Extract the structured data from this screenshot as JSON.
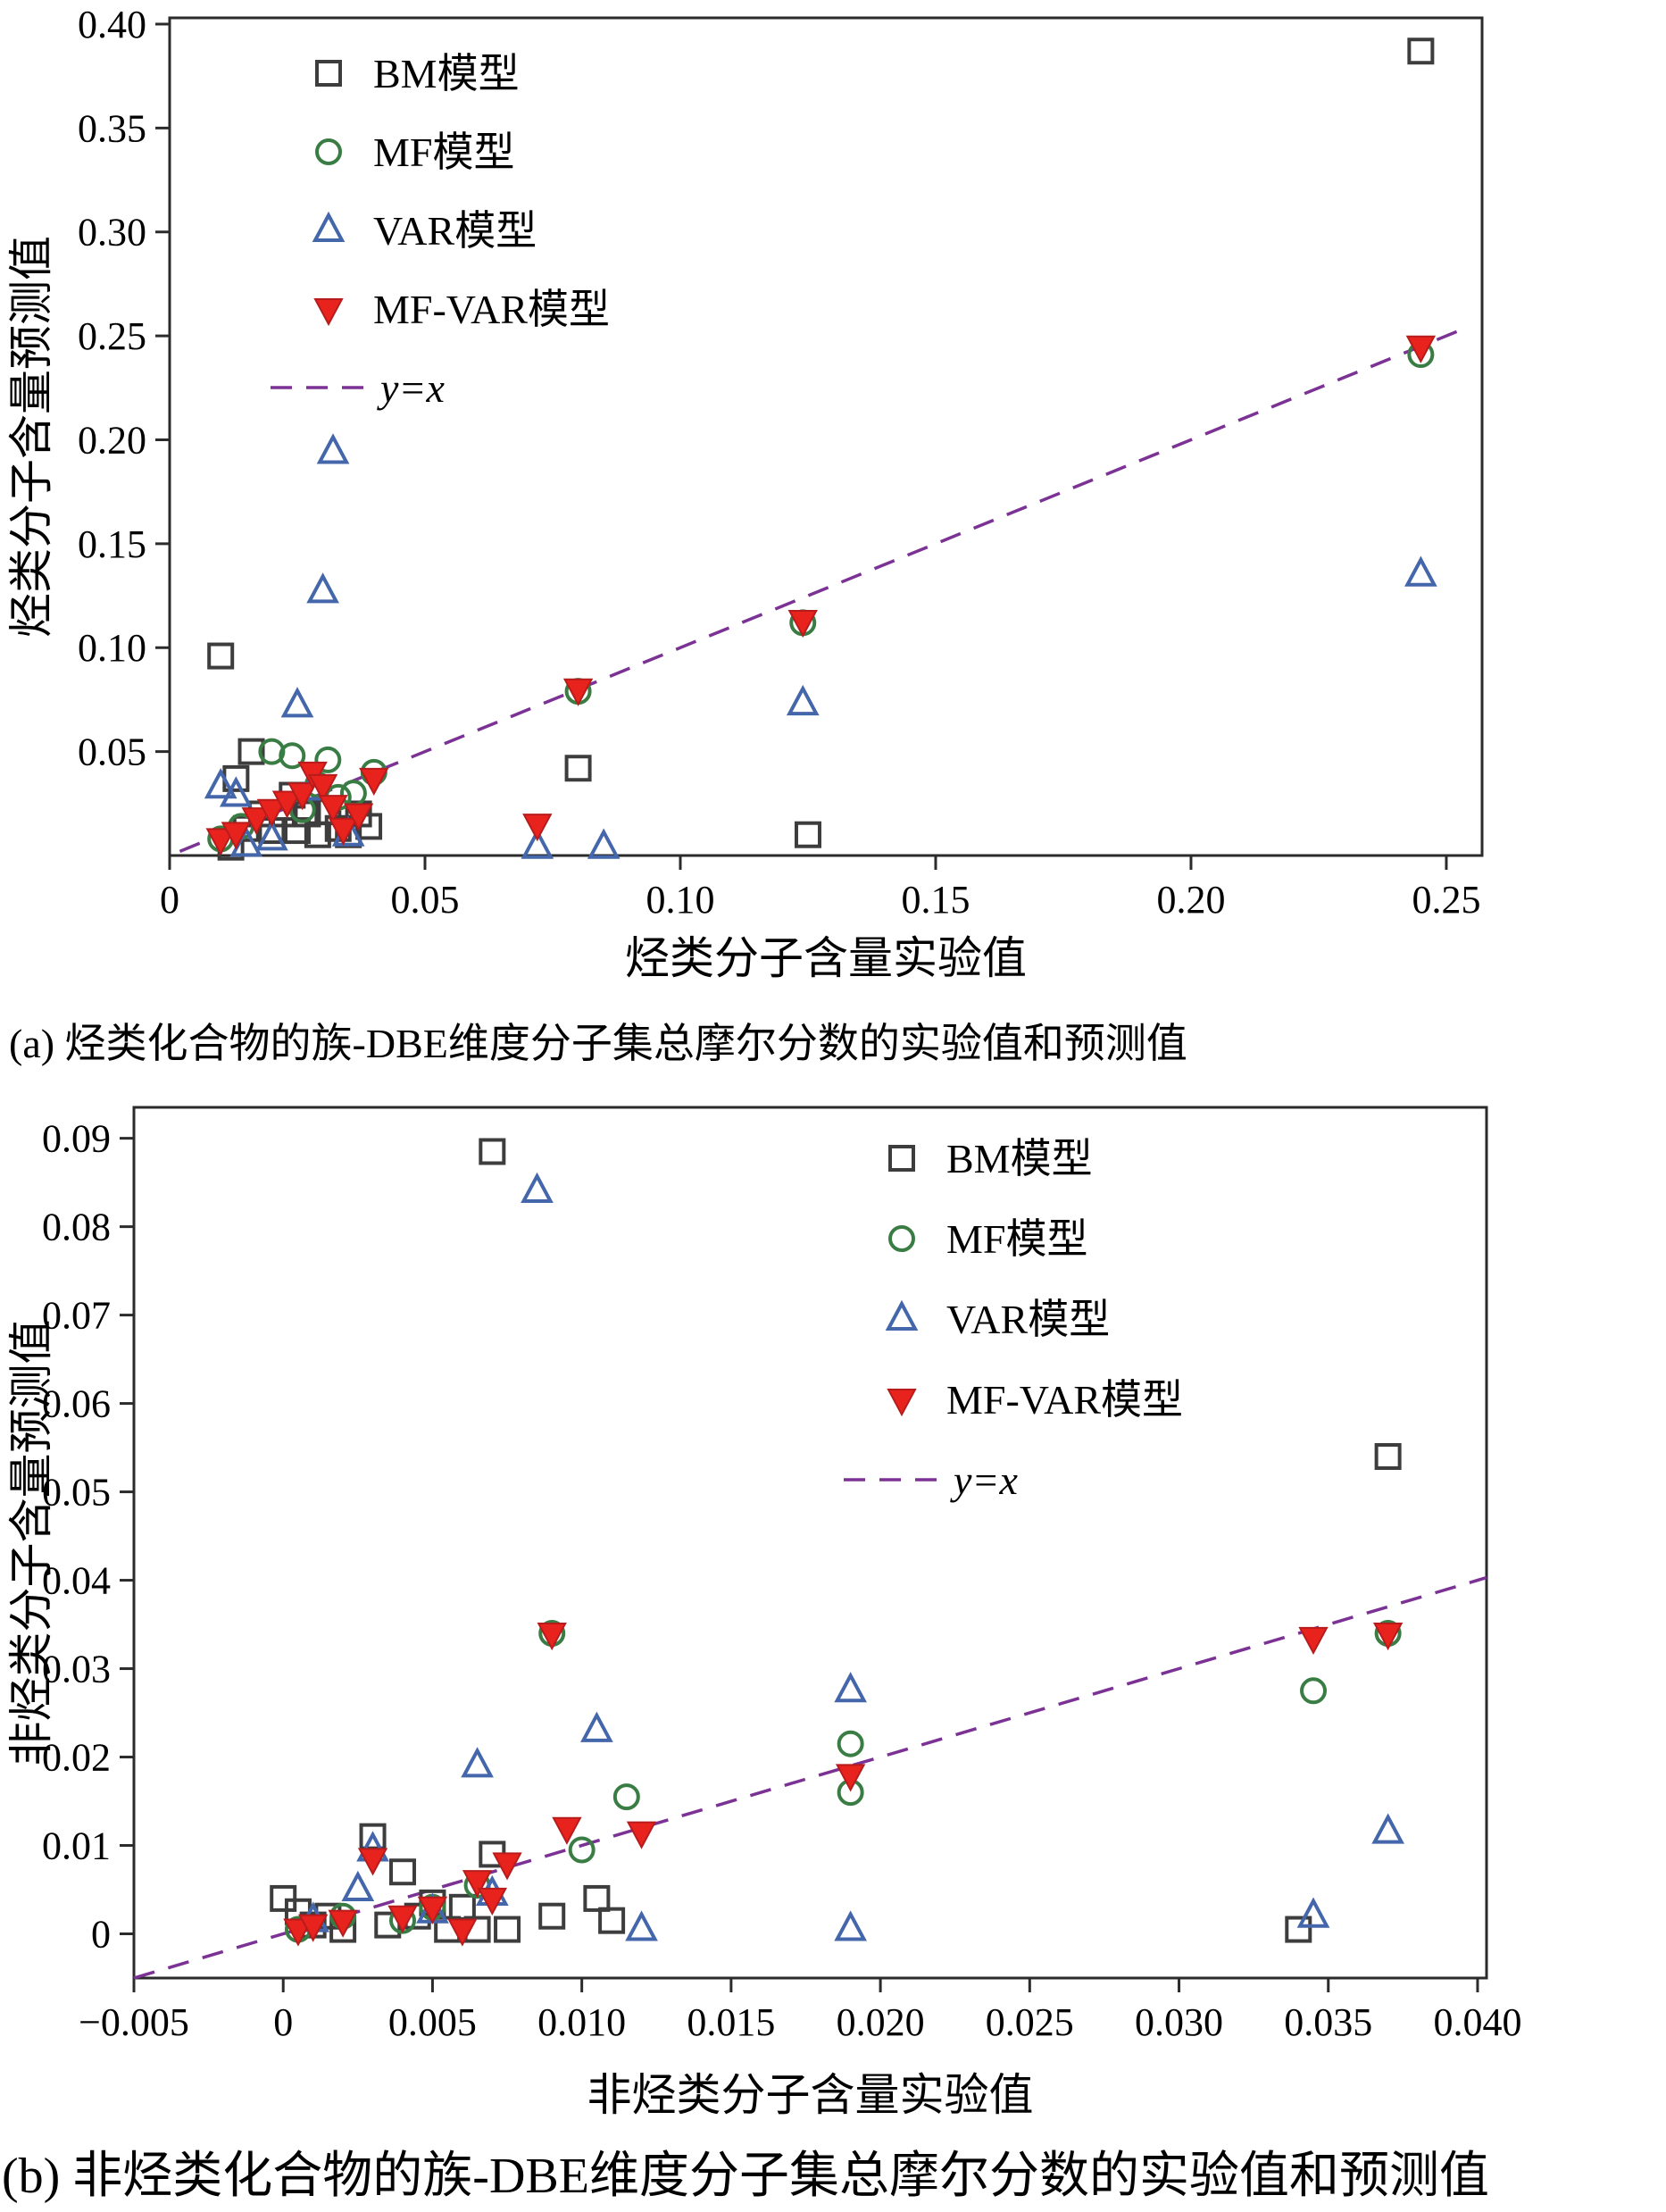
{
  "chart_data": [
    {
      "type": "scatter",
      "caption": "(a) 烃类化合物的族-DBE维度分子集总摩尔分数的实验值和预测值",
      "xlabel": "烃类分子含量实验值",
      "ylabel": "烃类分子含量预测值",
      "xlim": [
        0,
        0.257
      ],
      "ylim": [
        0,
        0.403
      ],
      "xticks": [
        {
          "v": 0,
          "label": "0"
        },
        {
          "v": 0.05,
          "label": "0.05"
        },
        {
          "v": 0.1,
          "label": "0.10"
        },
        {
          "v": 0.15,
          "label": "0.15"
        },
        {
          "v": 0.2,
          "label": "0.20"
        },
        {
          "v": 0.25,
          "label": "0.25"
        }
      ],
      "yticks": [
        {
          "v": 0.05,
          "label": "0.05"
        },
        {
          "v": 0.1,
          "label": "0.10"
        },
        {
          "v": 0.15,
          "label": "0.15"
        },
        {
          "v": 0.2,
          "label": "0.20"
        },
        {
          "v": 0.25,
          "label": "0.25"
        },
        {
          "v": 0.3,
          "label": "0.30"
        },
        {
          "v": 0.35,
          "label": "0.35"
        },
        {
          "v": 0.4,
          "label": "0.40"
        }
      ],
      "legend_position": "top-left",
      "series": [
        {
          "name": "BM模型",
          "marker": "square-open",
          "color": "#3d3d3d",
          "points": [
            [
              0.01,
              0.096
            ],
            [
              0.013,
              0.037
            ],
            [
              0.016,
              0.05
            ],
            [
              0.012,
              0.004
            ],
            [
              0.015,
              0.013
            ],
            [
              0.018,
              0.02
            ],
            [
              0.02,
              0.012
            ],
            [
              0.022,
              0.02
            ],
            [
              0.024,
              0.029
            ],
            [
              0.025,
              0.012
            ],
            [
              0.027,
              0.02
            ],
            [
              0.029,
              0.01
            ],
            [
              0.031,
              0.021
            ],
            [
              0.033,
              0.013
            ],
            [
              0.035,
              0.01
            ],
            [
              0.037,
              0.02
            ],
            [
              0.039,
              0.014
            ],
            [
              0.08,
              0.042
            ],
            [
              0.125,
              0.01
            ],
            [
              0.245,
              0.387
            ]
          ]
        },
        {
          "name": "MF模型",
          "marker": "circle-open",
          "color": "#3a7d44",
          "points": [
            [
              0.01,
              0.008
            ],
            [
              0.014,
              0.014
            ],
            [
              0.02,
              0.05
            ],
            [
              0.024,
              0.048
            ],
            [
              0.026,
              0.022
            ],
            [
              0.029,
              0.034
            ],
            [
              0.031,
              0.046
            ],
            [
              0.033,
              0.028
            ],
            [
              0.036,
              0.03
            ],
            [
              0.04,
              0.04
            ],
            [
              0.08,
              0.079
            ],
            [
              0.124,
              0.112
            ],
            [
              0.245,
              0.241
            ]
          ]
        },
        {
          "name": "VAR模型",
          "marker": "triangle-up-open",
          "color": "#4466aa",
          "points": [
            [
              0.01,
              0.033
            ],
            [
              0.013,
              0.029
            ],
            [
              0.015,
              0.005
            ],
            [
              0.02,
              0.008
            ],
            [
              0.025,
              0.072
            ],
            [
              0.028,
              0.032
            ],
            [
              0.03,
              0.127
            ],
            [
              0.032,
              0.194
            ],
            [
              0.035,
              0.01
            ],
            [
              0.072,
              0.004
            ],
            [
              0.085,
              0.004
            ],
            [
              0.124,
              0.073
            ],
            [
              0.245,
              0.135
            ]
          ]
        },
        {
          "name": "MF-VAR模型",
          "marker": "triangle-down-filled",
          "color": "#e8231d",
          "points": [
            [
              0.01,
              0.008
            ],
            [
              0.013,
              0.011
            ],
            [
              0.017,
              0.018
            ],
            [
              0.02,
              0.022
            ],
            [
              0.023,
              0.026
            ],
            [
              0.026,
              0.03
            ],
            [
              0.028,
              0.04
            ],
            [
              0.03,
              0.034
            ],
            [
              0.032,
              0.024
            ],
            [
              0.034,
              0.013
            ],
            [
              0.037,
              0.02
            ],
            [
              0.04,
              0.037
            ],
            [
              0.072,
              0.015
            ],
            [
              0.08,
              0.08
            ],
            [
              0.124,
              0.113
            ],
            [
              0.245,
              0.245
            ]
          ]
        }
      ],
      "reference_line": {
        "label": "y=x",
        "style": "dashed",
        "color": "#7b3294",
        "from": [
          0.002,
          0.002
        ],
        "to": [
          0.2525,
          0.2525
        ]
      }
    },
    {
      "type": "scatter",
      "caption": "(b) 非烃类化合物的族-DBE维度分子集总摩尔分数的实验值和预测值",
      "xlabel": "非烃类分子含量实验值",
      "ylabel": "非烃类分子含量预测值",
      "xlim": [
        -0.005,
        0.0403
      ],
      "ylim": [
        -0.005,
        0.0935
      ],
      "xticks": [
        {
          "v": -0.005,
          "label": "−0.005"
        },
        {
          "v": 0,
          "label": "0"
        },
        {
          "v": 0.005,
          "label": "0.005"
        },
        {
          "v": 0.01,
          "label": "0.010"
        },
        {
          "v": 0.015,
          "label": "0.015"
        },
        {
          "v": 0.02,
          "label": "0.020"
        },
        {
          "v": 0.025,
          "label": "0.025"
        },
        {
          "v": 0.03,
          "label": "0.030"
        },
        {
          "v": 0.035,
          "label": "0.035"
        },
        {
          "v": 0.04,
          "label": "0.040"
        }
      ],
      "yticks": [
        {
          "v": 0,
          "label": "0"
        },
        {
          "v": 0.01,
          "label": "0.01"
        },
        {
          "v": 0.02,
          "label": "0.02"
        },
        {
          "v": 0.03,
          "label": "0.03"
        },
        {
          "v": 0.04,
          "label": "0.04"
        },
        {
          "v": 0.05,
          "label": "0.05"
        },
        {
          "v": 0.06,
          "label": "0.06"
        },
        {
          "v": 0.07,
          "label": "0.07"
        },
        {
          "v": 0.08,
          "label": "0.08"
        },
        {
          "v": 0.09,
          "label": "0.09"
        }
      ],
      "legend_position": "top-right",
      "series": [
        {
          "name": "BM模型",
          "marker": "square-open",
          "color": "#3d3d3d",
          "points": [
            [
              0.007,
              0.0885
            ],
            [
              0.037,
              0.054
            ],
            [
              0.0,
              0.004
            ],
            [
              0.0005,
              0.0025
            ],
            [
              0.001,
              0.001
            ],
            [
              0.0015,
              0.002
            ],
            [
              0.002,
              0.0005
            ],
            [
              0.003,
              0.011
            ],
            [
              0.0035,
              0.001
            ],
            [
              0.004,
              0.007
            ],
            [
              0.0045,
              0.002
            ],
            [
              0.005,
              0.0035
            ],
            [
              0.0055,
              0.0005
            ],
            [
              0.006,
              0.003
            ],
            [
              0.0065,
              0.0005
            ],
            [
              0.007,
              0.009
            ],
            [
              0.0075,
              0.0005
            ],
            [
              0.009,
              0.002
            ],
            [
              0.0105,
              0.004
            ],
            [
              0.011,
              0.0015
            ],
            [
              0.034,
              0.0005
            ]
          ]
        },
        {
          "name": "MF模型",
          "marker": "circle-open",
          "color": "#3a7d44",
          "points": [
            [
              0.0005,
              0.0005
            ],
            [
              0.002,
              0.002
            ],
            [
              0.004,
              0.0015
            ],
            [
              0.005,
              0.003
            ],
            [
              0.0065,
              0.0055
            ],
            [
              0.009,
              0.034
            ],
            [
              0.01,
              0.0095
            ],
            [
              0.0115,
              0.0155
            ],
            [
              0.019,
              0.0215
            ],
            [
              0.019,
              0.016
            ],
            [
              0.0345,
              0.0275
            ],
            [
              0.037,
              0.034
            ]
          ]
        },
        {
          "name": "VAR模型",
          "marker": "triangle-up-open",
          "color": "#4466aa",
          "points": [
            [
              0.001,
              0.0015
            ],
            [
              0.0025,
              0.005
            ],
            [
              0.003,
              0.0095
            ],
            [
              0.005,
              0.0025
            ],
            [
              0.0065,
              0.019
            ],
            [
              0.007,
              0.0045
            ],
            [
              0.0085,
              0.084
            ],
            [
              0.0105,
              0.023
            ],
            [
              0.012,
              0.0005
            ],
            [
              0.019,
              0.0275
            ],
            [
              0.019,
              0.0005
            ],
            [
              0.0345,
              0.002
            ],
            [
              0.037,
              0.0115
            ]
          ]
        },
        {
          "name": "MF-VAR模型",
          "marker": "triangle-down-filled",
          "color": "#e8231d",
          "points": [
            [
              0.0005,
              0.0005
            ],
            [
              0.001,
              0.001
            ],
            [
              0.002,
              0.0015
            ],
            [
              0.003,
              0.0085
            ],
            [
              0.004,
              0.002
            ],
            [
              0.005,
              0.003
            ],
            [
              0.006,
              0.0005
            ],
            [
              0.0065,
              0.006
            ],
            [
              0.007,
              0.004
            ],
            [
              0.0075,
              0.008
            ],
            [
              0.009,
              0.034
            ],
            [
              0.0095,
              0.012
            ],
            [
              0.012,
              0.0115
            ],
            [
              0.019,
              0.018
            ],
            [
              0.0345,
              0.0335
            ],
            [
              0.037,
              0.034
            ]
          ]
        }
      ],
      "reference_line": {
        "label": "y=x",
        "style": "dashed",
        "color": "#7b3294",
        "from": [
          -0.005,
          -0.005
        ],
        "to": [
          0.0403,
          0.0403
        ]
      }
    }
  ]
}
